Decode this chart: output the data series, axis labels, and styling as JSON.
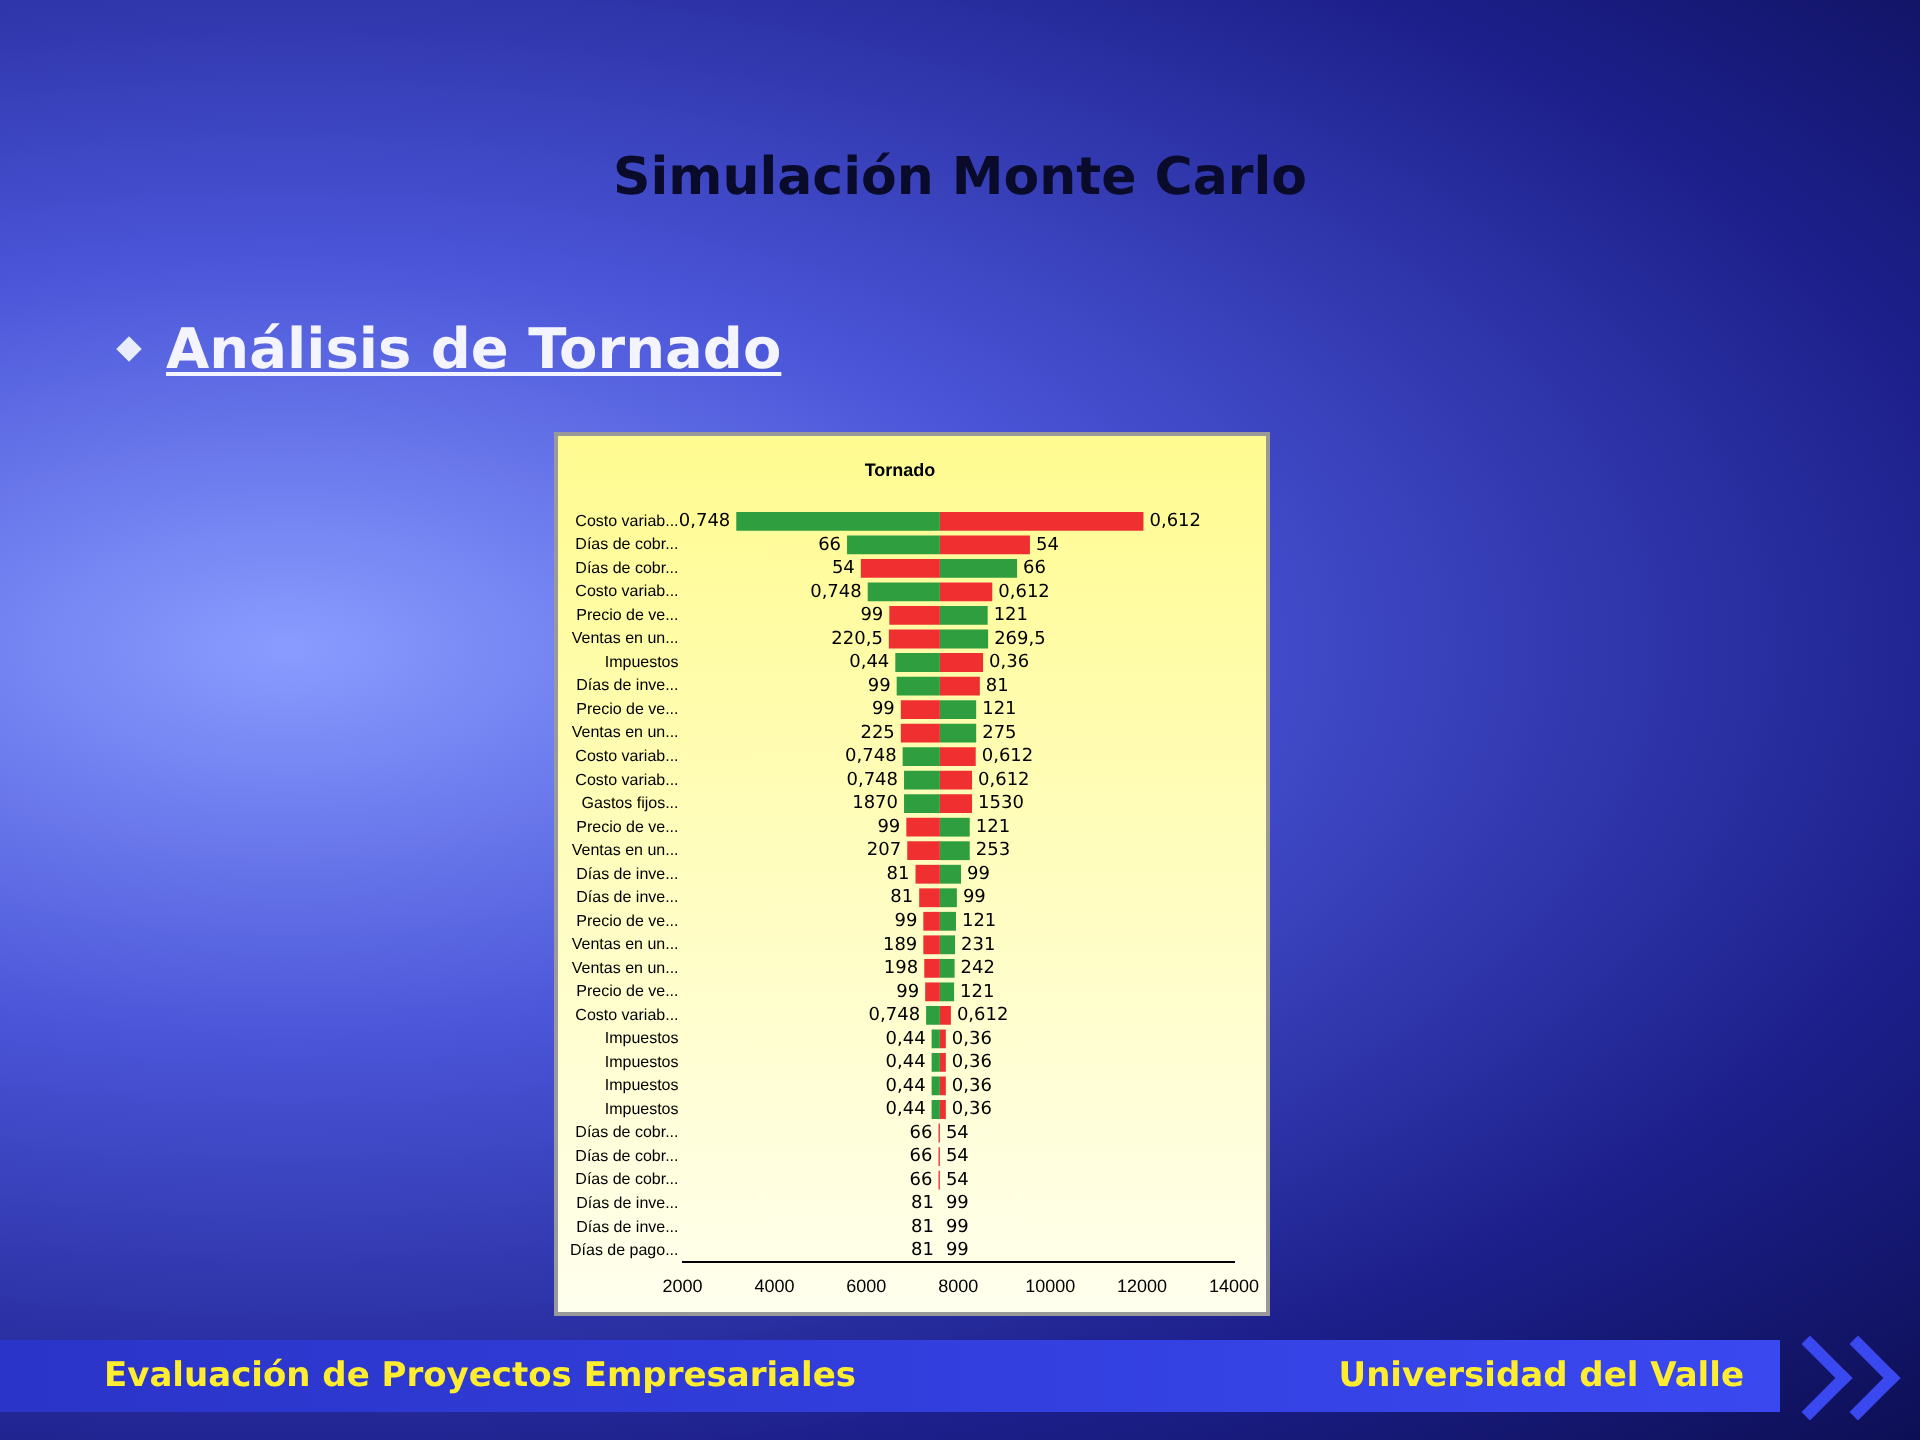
{
  "chart_data": {
    "type": "bar",
    "orientation": "horizontal",
    "title": "Tornado",
    "annotations": [
      "Simulación Monte Carlo",
      "Análisis de Tornado",
      "Evaluación de Proyectos Empresariales",
      "Universidad del Valle",
      "0,748",
      "0,612",
      "66",
      "54",
      "54",
      "66",
      "0,748",
      "0,612",
      "99",
      "121",
      "220,5",
      "269,5",
      "0,44",
      "0,36",
      "99",
      "81",
      "99",
      "121",
      "225",
      "275",
      "0,748",
      "0,612",
      "0,748",
      "0,612",
      "1870",
      "1530",
      "99",
      "121",
      "207",
      "253",
      "81",
      "99",
      "81",
      "99",
      "99",
      "121",
      "189",
      "231",
      "198",
      "242",
      "99",
      "121",
      "0,748",
      "0,612",
      "0,44",
      "0,36",
      "0,44",
      "0,36",
      "0,44",
      "0,36",
      "0,44",
      "0,36",
      "66",
      "54",
      "66",
      "54",
      "66",
      "54",
      "81",
      "99",
      "81",
      "99",
      "81",
      "99"
    ],
    "categories": [
      "Costo variab...",
      "Días de cobr...",
      "Días de cobr...",
      "Costo variab...",
      "Precio de ve...",
      "Ventas en un...",
      "Impuestos",
      "Días de inve...",
      "Precio de ve...",
      "Ventas en un...",
      "Costo variab...",
      "Costo variab...",
      "Gastos fijos...",
      "Precio de ve...",
      "Ventas en un...",
      "Días de inve...",
      "Días de inve...",
      "Precio de ve...",
      "Ventas en un...",
      "Ventas en un...",
      "Precio de ve...",
      "Costo variab...",
      "Impuestos",
      "Impuestos",
      "Impuestos",
      "Impuestos",
      "Días de cobr...",
      "Días de cobr...",
      "Días de cobr...",
      "Días de inve...",
      "Días de inve...",
      "Días de pago..."
    ],
    "series": [
      {
        "base": [
          3170,
          5580,
          5880,
          6030,
          6500,
          6490,
          6630,
          6660,
          6750,
          6750,
          6790,
          6820,
          6820,
          6870,
          6890,
          7070,
          7150,
          7240,
          7240,
          7260,
          7280,
          7300,
          7420,
          7420,
          7420,
          7420,
          7570,
          7570,
          7570,
          null,
          null,
          null
        ],
        "values": [
          4430,
          2020,
          1720,
          1570,
          1100,
          1110,
          970,
          940,
          850,
          850,
          810,
          780,
          780,
          730,
          710,
          530,
          450,
          360,
          360,
          340,
          320,
          300,
          180,
          180,
          180,
          180,
          30,
          30,
          30,
          null,
          null,
          null
        ],
        "colors": [
          "#2e9e3e",
          "#2e9e3e",
          "#f03030",
          "#2e9e3e",
          "#f03030",
          "#f03030",
          "#2e9e3e",
          "#2e9e3e",
          "#f03030",
          "#f03030",
          "#2e9e3e",
          "#2e9e3e",
          "#2e9e3e",
          "#f03030",
          "#f03030",
          "#f03030",
          "#f03030",
          "#f03030",
          "#f03030",
          "#f03030",
          "#f03030",
          "#2e9e3e",
          "#2e9e3e",
          "#2e9e3e",
          "#2e9e3e",
          "#2e9e3e",
          "#f03030",
          "#f03030",
          "#f03030",
          "#f03030",
          "#f03030",
          "#f03030"
        ]
      },
      {
        "base": [
          7600,
          7600,
          7600,
          7600,
          7600,
          7600,
          7600,
          7600,
          7600,
          7600,
          7600,
          7600,
          7600,
          7600,
          7600,
          7600,
          7600,
          7600,
          7600,
          7600,
          7600,
          7600,
          7600,
          7600,
          7600,
          7600,
          null,
          null,
          null,
          null,
          null,
          null
        ],
        "values": [
          4430,
          1960,
          1680,
          1140,
          1040,
          1050,
          940,
          870,
          790,
          790,
          780,
          700,
          700,
          650,
          650,
          460,
          370,
          350,
          330,
          320,
          310,
          240,
          130,
          130,
          130,
          130,
          null,
          null,
          null,
          null,
          null,
          null
        ],
        "colors": [
          "#f03030",
          "#f03030",
          "#2e9e3e",
          "#f03030",
          "#2e9e3e",
          "#2e9e3e",
          "#f03030",
          "#f03030",
          "#2e9e3e",
          "#2e9e3e",
          "#f03030",
          "#f03030",
          "#f03030",
          "#2e9e3e",
          "#2e9e3e",
          "#2e9e3e",
          "#2e9e3e",
          "#2e9e3e",
          "#2e9e3e",
          "#2e9e3e",
          "#2e9e3e",
          "#f03030",
          "#f03030",
          "#f03030",
          "#f03030",
          "#f03030",
          "#f03030",
          "#f03030",
          "#f03030",
          "#2e9e3e",
          "#2e9e3e",
          "#2e9e3e"
        ]
      }
    ],
    "xlim": [
      2000,
      14000
    ],
    "xticks": [
      2000,
      4000,
      6000,
      8000,
      10000,
      12000,
      14000
    ]
  }
}
